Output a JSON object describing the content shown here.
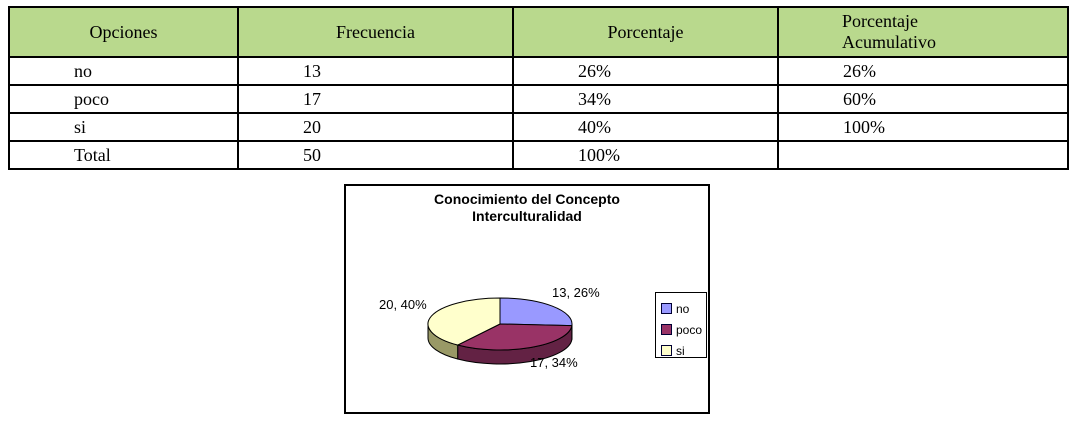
{
  "page": {
    "background": "#ffffff"
  },
  "table": {
    "header_bg": "#b9d98d",
    "border_color": "#000000",
    "headers": [
      "Opciones",
      "Frecuencia",
      "Porcentaje",
      "Porcentaje Acumulativo"
    ],
    "rows": [
      [
        "no",
        "13",
        "26%",
        "26%"
      ],
      [
        "poco",
        "17",
        "34%",
        "60%"
      ],
      [
        "si",
        "20",
        "40%",
        "100%"
      ],
      [
        "Total",
        "50",
        "100%",
        ""
      ]
    ]
  },
  "chart_data": {
    "type": "pie",
    "style": "3d-pie",
    "title": "Conocimiento del Concepto Interculturalidad",
    "title_lines": [
      "Conocimiento del Concepto",
      "Interculturalidad"
    ],
    "categories": [
      "no",
      "poco",
      "si"
    ],
    "values": [
      13,
      17,
      20
    ],
    "total": 50,
    "percentages": [
      26,
      34,
      40
    ],
    "labels": [
      "13, 26%",
      "17, 34%",
      "20, 40%"
    ],
    "colors": [
      "#9999ff",
      "#993366",
      "#ffffcc"
    ],
    "side_colors": [
      "#6666cc",
      "#632244",
      "#999966"
    ],
    "outline_color": "#000000",
    "legend_position": "right",
    "start_angle_deg": 0,
    "direction": "clockwise"
  }
}
